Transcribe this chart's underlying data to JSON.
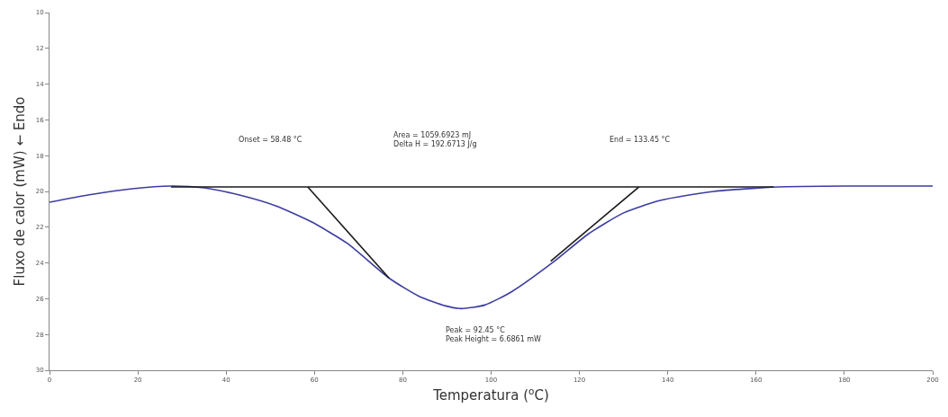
{
  "chart_data": {
    "type": "line",
    "xlabel": "Temperatura ($^{o}$C)",
    "ylabel": "Fluxo de calor (mW) ← Endo",
    "xlim": [
      0,
      200
    ],
    "xticks": [
      0,
      20,
      40,
      60,
      80,
      100,
      120,
      140,
      160,
      180,
      200
    ],
    "ylim": [
      30,
      10
    ],
    "yticks": [
      10,
      12,
      14,
      16,
      18,
      20,
      22,
      24,
      26,
      28,
      30
    ],
    "marker": "none",
    "line_style": "solid",
    "series": [
      {
        "color": "#3c3ca0",
        "x": [
          0,
          8.7,
          18.8,
          27.5,
          35,
          43,
          51.2,
          59.3,
          67.4,
          76.9,
          83.6,
          89.7,
          93.2,
          98.6,
          104.7,
          114.2,
          121.9,
          130,
          138.3,
          150.4,
          165,
          180.7,
          188.8,
          200
        ],
        "values": [
          20.6,
          20.2,
          19.85,
          19.7,
          19.8,
          20.2,
          20.8,
          21.7,
          22.9,
          24.85,
          25.85,
          26.4,
          26.55,
          26.35,
          25.6,
          23.93,
          22.4,
          21.2,
          20.5,
          20.0,
          19.75,
          19.7,
          19.7,
          19.7
        ]
      },
      {
        "color": "#1a1a1a",
        "x": [
          27.5,
          164
        ],
        "values": [
          19.75,
          19.75
        ]
      },
      {
        "color": "#1a1a1a",
        "x": [
          58.48,
          76.9
        ],
        "values": [
          19.75,
          24.85
        ]
      },
      {
        "color": "#1a1a1a",
        "x": [
          133.45,
          113.5
        ],
        "values": [
          19.75,
          23.9
        ]
      }
    ],
    "annotations": [
      "Onset = 58.48 °C",
      "Area = 1059.6923 mJ\nDelta H = 192.6713 J/g",
      "End = 133.45 °C",
      "Peak = 92.45 °C\nPeak Height = 6.6861 mW"
    ]
  }
}
